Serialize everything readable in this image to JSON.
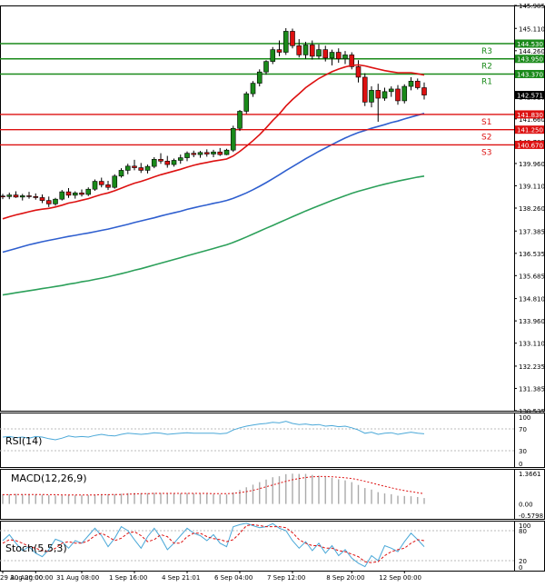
{
  "chart_data": [
    {
      "type": "candlestick",
      "panel": "price",
      "yticks": [
        "145.985",
        "145.110",
        "144.260",
        "143.385",
        "142.510",
        "141.660",
        "140.785",
        "139.960",
        "139.110",
        "138.260",
        "137.385",
        "136.535",
        "135.685",
        "134.810",
        "133.960",
        "133.110",
        "132.235",
        "131.385",
        "130.535"
      ],
      "ylim": [
        130.535,
        145.985
      ],
      "current_price": {
        "label": "142.571",
        "value": 142.571
      },
      "levels": [
        {
          "name": "R3",
          "value": 144.53,
          "label": "144.530",
          "color": "#1a8a1a"
        },
        {
          "name": "R2",
          "value": 143.95,
          "label": "143.950",
          "color": "#1a8a1a"
        },
        {
          "name": "R1",
          "value": 143.37,
          "label": "143.370",
          "color": "#1a8a1a"
        },
        {
          "name": "S1",
          "value": 141.83,
          "label": "141.830",
          "color": "#dd1111"
        },
        {
          "name": "S2",
          "value": 141.25,
          "label": "141.250",
          "color": "#dd1111"
        },
        {
          "name": "S3",
          "value": 140.67,
          "label": "140.670",
          "color": "#dd1111"
        }
      ],
      "candles": [
        [
          138.72,
          138.8,
          138.6,
          138.7
        ],
        [
          138.7,
          138.85,
          138.6,
          138.76
        ],
        [
          138.76,
          138.9,
          138.65,
          138.68
        ],
        [
          138.68,
          138.8,
          138.55,
          138.73
        ],
        [
          138.73,
          138.88,
          138.62,
          138.7
        ],
        [
          138.7,
          138.82,
          138.58,
          138.66
        ],
        [
          138.66,
          138.78,
          138.45,
          138.55
        ],
        [
          138.55,
          138.7,
          138.3,
          138.42
        ],
        [
          138.42,
          138.65,
          138.35,
          138.6
        ],
        [
          138.6,
          138.95,
          138.55,
          138.88
        ],
        [
          138.88,
          139.02,
          138.65,
          138.75
        ],
        [
          138.75,
          138.9,
          138.62,
          138.84
        ],
        [
          138.84,
          138.97,
          138.7,
          138.78
        ],
        [
          138.78,
          139.05,
          138.72,
          138.98
        ],
        [
          138.98,
          139.35,
          138.92,
          139.28
        ],
        [
          139.28,
          139.42,
          139.05,
          139.15
        ],
        [
          139.15,
          139.3,
          138.95,
          139.05
        ],
        [
          139.05,
          139.55,
          139.0,
          139.48
        ],
        [
          139.48,
          139.78,
          139.42,
          139.7
        ],
        [
          139.7,
          139.95,
          139.55,
          139.86
        ],
        [
          139.86,
          140.1,
          139.7,
          139.8
        ],
        [
          139.8,
          139.98,
          139.6,
          139.7
        ],
        [
          139.7,
          139.92,
          139.58,
          139.85
        ],
        [
          139.85,
          140.2,
          139.78,
          140.12
        ],
        [
          140.12,
          140.35,
          139.95,
          140.05
        ],
        [
          140.05,
          140.25,
          139.8,
          139.92
        ],
        [
          139.92,
          140.15,
          139.84,
          140.08
        ],
        [
          140.08,
          140.3,
          139.95,
          140.18
        ],
        [
          140.18,
          140.42,
          140.05,
          140.35
        ],
        [
          140.35,
          140.45,
          140.2,
          140.3
        ],
        [
          140.3,
          140.44,
          140.18,
          140.38
        ],
        [
          140.38,
          140.5,
          140.22,
          140.32
        ],
        [
          140.32,
          140.48,
          140.2,
          140.4
        ],
        [
          140.4,
          140.55,
          140.25,
          140.3
        ],
        [
          140.3,
          140.52,
          140.28,
          140.47
        ],
        [
          140.47,
          141.4,
          140.4,
          141.3
        ],
        [
          141.3,
          142.0,
          141.2,
          141.95
        ],
        [
          141.95,
          142.7,
          141.85,
          142.62
        ],
        [
          142.62,
          143.1,
          142.5,
          143.02
        ],
        [
          143.02,
          143.55,
          142.9,
          143.45
        ],
        [
          143.45,
          143.9,
          143.35,
          143.85
        ],
        [
          143.85,
          144.4,
          143.75,
          144.3
        ],
        [
          144.3,
          144.65,
          144.05,
          144.2
        ],
        [
          144.2,
          145.12,
          144.1,
          145.0
        ],
        [
          145.0,
          145.1,
          144.35,
          144.45
        ],
        [
          144.45,
          144.7,
          144.0,
          144.1
        ],
        [
          144.1,
          144.6,
          143.95,
          144.48
        ],
        [
          144.48,
          144.65,
          143.92,
          144.05
        ],
        [
          144.05,
          144.5,
          143.95,
          144.3
        ],
        [
          144.3,
          144.45,
          143.85,
          143.98
        ],
        [
          143.98,
          144.3,
          143.7,
          144.2
        ],
        [
          144.2,
          144.35,
          143.8,
          143.95
        ],
        [
          143.95,
          144.25,
          143.75,
          144.1
        ],
        [
          144.1,
          144.2,
          143.55,
          143.65
        ],
        [
          143.65,
          143.9,
          143.05,
          143.25
        ],
        [
          143.25,
          143.4,
          142.15,
          142.3
        ],
        [
          142.3,
          142.9,
          142.1,
          142.75
        ],
        [
          142.75,
          143.0,
          141.55,
          142.45
        ],
        [
          142.45,
          142.85,
          142.35,
          142.7
        ],
        [
          142.7,
          142.9,
          142.5,
          142.8
        ],
        [
          142.8,
          142.95,
          142.2,
          142.35
        ],
        [
          142.35,
          142.98,
          142.25,
          142.9
        ],
        [
          142.9,
          143.25,
          142.75,
          143.1
        ],
        [
          143.1,
          143.2,
          142.78,
          142.85
        ],
        [
          142.85,
          143.05,
          142.4,
          142.57
        ]
      ],
      "ma_fast": [
        137.85,
        137.93,
        138.0,
        138.06,
        138.12,
        138.18,
        138.22,
        138.25,
        138.3,
        138.37,
        138.45,
        138.5,
        138.56,
        138.62,
        138.7,
        138.78,
        138.84,
        138.92,
        139.02,
        139.12,
        139.21,
        139.28,
        139.36,
        139.45,
        139.53,
        139.6,
        139.67,
        139.74,
        139.82,
        139.89,
        139.95,
        140.0,
        140.05,
        140.09,
        140.13,
        140.25,
        140.42,
        140.62,
        140.83,
        141.06,
        141.32,
        141.6,
        141.85,
        142.15,
        142.4,
        142.62,
        142.85,
        143.03,
        143.2,
        143.33,
        143.46,
        143.56,
        143.64,
        143.7,
        143.72,
        143.68,
        143.62,
        143.56,
        143.5,
        143.46,
        143.42,
        143.42,
        143.42,
        143.38,
        143.33
      ],
      "ma_mid": [
        136.58,
        136.65,
        136.72,
        136.79,
        136.86,
        136.92,
        136.98,
        137.03,
        137.08,
        137.13,
        137.18,
        137.22,
        137.27,
        137.31,
        137.36,
        137.41,
        137.46,
        137.52,
        137.58,
        137.64,
        137.71,
        137.77,
        137.83,
        137.89,
        137.96,
        138.02,
        138.08,
        138.14,
        138.21,
        138.27,
        138.33,
        138.38,
        138.44,
        138.49,
        138.55,
        138.63,
        138.73,
        138.84,
        138.96,
        139.09,
        139.23,
        139.38,
        139.53,
        139.69,
        139.84,
        139.99,
        140.14,
        140.28,
        140.42,
        140.55,
        140.68,
        140.81,
        140.93,
        141.04,
        141.14,
        141.22,
        141.3,
        141.37,
        141.44,
        141.52,
        141.58,
        141.66,
        141.73,
        141.8,
        141.87
      ],
      "ma_slow": [
        134.95,
        134.99,
        135.03,
        135.07,
        135.11,
        135.15,
        135.19,
        135.23,
        135.27,
        135.31,
        135.36,
        135.4,
        135.45,
        135.49,
        135.54,
        135.59,
        135.64,
        135.7,
        135.76,
        135.82,
        135.89,
        135.95,
        136.02,
        136.09,
        136.16,
        136.23,
        136.3,
        136.37,
        136.44,
        136.51,
        136.58,
        136.65,
        136.72,
        136.79,
        136.86,
        136.95,
        137.05,
        137.16,
        137.27,
        137.38,
        137.49,
        137.6,
        137.71,
        137.82,
        137.93,
        138.04,
        138.15,
        138.25,
        138.35,
        138.45,
        138.55,
        138.64,
        138.73,
        138.82,
        138.9,
        138.97,
        139.04,
        139.11,
        139.17,
        139.23,
        139.29,
        139.34,
        139.39,
        139.44,
        139.48
      ],
      "colors": {
        "bull": "#1a8a1a",
        "bear": "#dd1111",
        "ma_fast": "#dd1111",
        "ma_mid": "#2f5fcf",
        "ma_slow": "#2ca05a",
        "price_tag": "#000000"
      }
    },
    {
      "type": "line",
      "panel": "rsi",
      "title": "RSI(14)",
      "yticks": [
        "100",
        "70",
        "30",
        "0"
      ],
      "ylim": [
        0,
        100
      ],
      "values": [
        55,
        56,
        54,
        55,
        53,
        56,
        55,
        52,
        50,
        53,
        57,
        55,
        56,
        55,
        58,
        60,
        58,
        57,
        60,
        62,
        61,
        60,
        61,
        63,
        62,
        60,
        61,
        62,
        63,
        62,
        62,
        62,
        62,
        61,
        62,
        68,
        72,
        75,
        77,
        79,
        80,
        82,
        81,
        84,
        80,
        78,
        79,
        77,
        78,
        75,
        76,
        74,
        75,
        72,
        68,
        62,
        64,
        60,
        62,
        63,
        60,
        62,
        64,
        62,
        61
      ],
      "color": "#4aa8d8"
    },
    {
      "type": "bar",
      "panel": "macd",
      "title": "MACD(12,26,9)",
      "yticks": [
        "1.3661",
        "0.00",
        "-0.5798"
      ],
      "ylim": [
        -0.5798,
        1.3661
      ],
      "histogram": [
        0.38,
        0.38,
        0.39,
        0.38,
        0.38,
        0.37,
        0.36,
        0.34,
        0.33,
        0.33,
        0.34,
        0.34,
        0.34,
        0.34,
        0.36,
        0.38,
        0.38,
        0.38,
        0.4,
        0.42,
        0.43,
        0.42,
        0.42,
        0.43,
        0.43,
        0.42,
        0.41,
        0.41,
        0.42,
        0.41,
        0.4,
        0.39,
        0.38,
        0.37,
        0.37,
        0.45,
        0.55,
        0.65,
        0.75,
        0.85,
        0.95,
        1.04,
        1.08,
        1.16,
        1.18,
        1.17,
        1.17,
        1.13,
        1.1,
        1.05,
        1.01,
        0.96,
        0.92,
        0.85,
        0.74,
        0.62,
        0.56,
        0.46,
        0.41,
        0.38,
        0.32,
        0.31,
        0.3,
        0.27,
        0.23
      ],
      "signal": [
        0.36,
        0.36,
        0.37,
        0.37,
        0.37,
        0.37,
        0.37,
        0.36,
        0.36,
        0.35,
        0.35,
        0.35,
        0.35,
        0.35,
        0.35,
        0.36,
        0.36,
        0.37,
        0.37,
        0.38,
        0.39,
        0.4,
        0.4,
        0.41,
        0.41,
        0.41,
        0.41,
        0.41,
        0.41,
        0.41,
        0.41,
        0.41,
        0.4,
        0.4,
        0.4,
        0.41,
        0.44,
        0.48,
        0.53,
        0.6,
        0.67,
        0.74,
        0.81,
        0.88,
        0.94,
        0.99,
        1.03,
        1.06,
        1.07,
        1.07,
        1.06,
        1.04,
        1.02,
        0.99,
        0.94,
        0.88,
        0.82,
        0.75,
        0.69,
        0.63,
        0.57,
        0.52,
        0.48,
        0.44,
        0.4
      ],
      "colors": {
        "histogram": "#aaaaaa",
        "signal": "#dd1111"
      }
    },
    {
      "type": "line",
      "panel": "stoch",
      "title": "Stoch(5,5,3)",
      "yticks": [
        "100",
        "80",
        "20",
        "0"
      ],
      "ylim": [
        0,
        100
      ],
      "k": [
        60,
        72,
        55,
        40,
        48,
        35,
        28,
        42,
        63,
        58,
        45,
        60,
        55,
        70,
        85,
        70,
        48,
        65,
        88,
        80,
        62,
        45,
        68,
        85,
        66,
        42,
        55,
        70,
        85,
        75,
        70,
        60,
        72,
        55,
        48,
        88,
        92,
        95,
        90,
        86,
        88,
        94,
        85,
        80,
        60,
        45,
        58,
        40,
        55,
        35,
        50,
        30,
        42,
        25,
        15,
        8,
        30,
        20,
        50,
        45,
        38,
        58,
        75,
        62,
        48
      ],
      "d": [
        55,
        62,
        60,
        55,
        48,
        45,
        40,
        38,
        45,
        55,
        58,
        55,
        55,
        60,
        70,
        75,
        68,
        60,
        65,
        75,
        78,
        70,
        58,
        62,
        72,
        68,
        55,
        55,
        68,
        75,
        75,
        68,
        64,
        62,
        58,
        62,
        75,
        90,
        92,
        90,
        88,
        88,
        88,
        86,
        76,
        62,
        55,
        50,
        50,
        45,
        45,
        40,
        38,
        33,
        28,
        18,
        16,
        18,
        30,
        38,
        42,
        45,
        55,
        62,
        60
      ],
      "colors": {
        "k": "#4aa8d8",
        "d": "#dd1111"
      }
    },
    {
      "type": "axis",
      "panel": "time",
      "x_ticks": [
        {
          "label": "29 Aug 20:00",
          "index": 0
        },
        {
          "label": "30 Aug 00:00",
          "index": 5
        },
        {
          "label": "31 Aug 08:00",
          "index": 12
        },
        {
          "label": "1 Sep 16:00",
          "index": 20
        },
        {
          "label": "4 Sep 21:01",
          "index": 28
        },
        {
          "label": "6 Sep 04:00",
          "index": 36
        },
        {
          "label": "7 Sep 12:00",
          "index": 44
        },
        {
          "label": "8 Sep 20:00",
          "index": 53
        },
        {
          "label": "12 Sep 00:00",
          "index": 61
        }
      ]
    }
  ]
}
